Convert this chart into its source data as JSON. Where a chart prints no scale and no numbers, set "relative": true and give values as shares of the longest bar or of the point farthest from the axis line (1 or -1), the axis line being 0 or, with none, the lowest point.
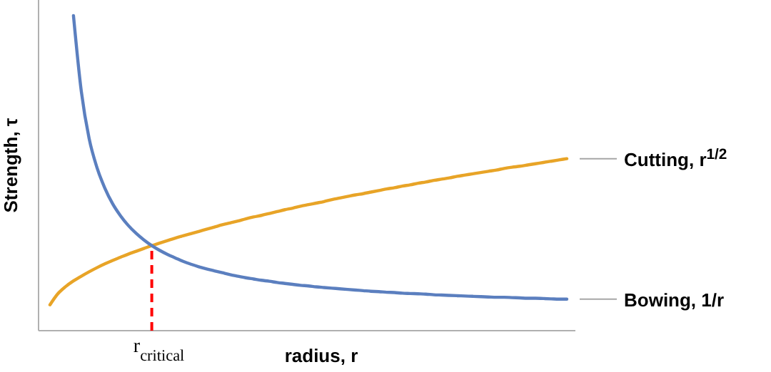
{
  "chart_data": {
    "type": "line",
    "relative": true,
    "xlabel": "radius, r",
    "ylabel": "Strength, τ",
    "legend": false,
    "categories": [
      null,
      null,
      null,
      null,
      null,
      null,
      null,
      null,
      null,
      null,
      null,
      null,
      null,
      null,
      null,
      null,
      null,
      null,
      null,
      null,
      null,
      null,
      null,
      null,
      null,
      null,
      null,
      null,
      null,
      null,
      null,
      null,
      null,
      null,
      null,
      null,
      null,
      null,
      null,
      null,
      null,
      null,
      null,
      null,
      null,
      null,
      null,
      null,
      null,
      null,
      null,
      null,
      null,
      null,
      null,
      null,
      null,
      null,
      null,
      null,
      null,
      null,
      null,
      null,
      null,
      null,
      null
    ],
    "series": [
      {
        "name": "Cutting, r$^{1/2}$",
        "color": "#e8a427",
        "values": [
          0.082,
          0.117,
          0.14,
          0.158,
          0.173,
          0.187,
          0.2,
          0.212,
          0.223,
          0.233,
          0.243,
          0.252,
          0.261,
          0.27,
          0.278,
          0.286,
          0.294,
          0.301,
          0.308,
          0.315,
          0.322,
          0.329,
          0.336,
          0.342,
          0.348,
          0.355,
          0.361,
          0.366,
          0.372,
          0.378,
          0.384,
          0.389,
          0.395,
          0.4,
          0.405,
          0.41,
          0.416,
          0.421,
          0.426,
          0.431,
          0.435,
          0.44,
          0.445,
          0.45,
          0.454,
          0.459,
          0.463,
          0.468,
          0.472,
          0.477,
          0.481,
          0.485,
          0.49,
          0.494,
          0.498,
          0.502,
          0.506,
          0.51,
          0.515,
          0.519,
          0.522,
          0.526,
          0.53,
          0.534,
          0.538,
          0.542,
          0.546
        ]
      },
      {
        "name": "Bowing, 1/r",
        "color": "#5b7fbf",
        "values": [
          null,
          null,
          null,
          1.0,
          0.76,
          0.61,
          0.518,
          0.453,
          0.403,
          0.365,
          0.334,
          0.309,
          0.288,
          0.27,
          0.255,
          0.242,
          0.231,
          0.22,
          0.211,
          0.203,
          0.196,
          0.19,
          0.184,
          0.178,
          0.173,
          0.168,
          0.164,
          0.16,
          0.157,
          0.153,
          0.15,
          0.147,
          0.144,
          0.142,
          0.139,
          0.137,
          0.135,
          0.133,
          0.131,
          0.129,
          0.127,
          0.125,
          0.124,
          0.122,
          0.121,
          0.119,
          0.118,
          0.117,
          0.116,
          0.114,
          0.113,
          0.112,
          0.111,
          0.11,
          0.109,
          0.108,
          0.107,
          0.106,
          0.106,
          0.105,
          0.104,
          0.103,
          0.103,
          0.102,
          0.101,
          0.1,
          0.1
        ]
      }
    ],
    "annotations": [
      "r$_{critical}$"
    ]
  }
}
